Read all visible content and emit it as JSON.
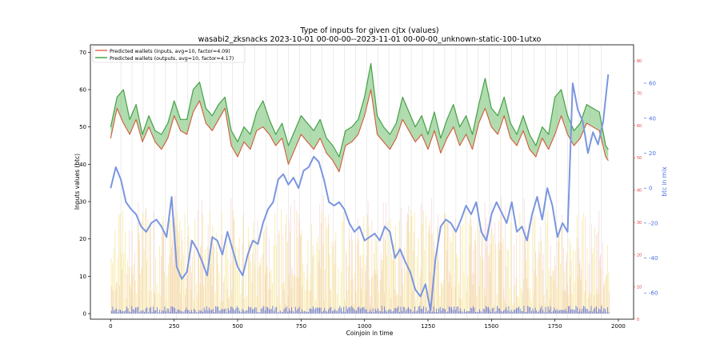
{
  "chart_data": {
    "type": "line",
    "title": "Type of inputs for given cjtx (values)",
    "subtitle": "wasabi2_zksnacks 2023-10-01 00-00-00--2023-11-01 00-00-00_unknown-static-100-1utxo",
    "xlabel": "Coinjoin in time",
    "ylabel_left": "Inputs values (btc)",
    "ylabel_right": "btc in mix",
    "xlim": [
      -80,
      2060
    ],
    "ylim_left": [
      -1.5,
      72
    ],
    "ylim_mid": [
      0,
      85
    ],
    "ylim_right": [
      -75,
      82
    ],
    "x_ticks": [
      0,
      250,
      500,
      750,
      1000,
      1250,
      1500,
      1750,
      2000
    ],
    "y_left_ticks": [
      0,
      10,
      20,
      30,
      40,
      50,
      60,
      70
    ],
    "y_mid_ticks": [
      0,
      10,
      20,
      30,
      40,
      50,
      60,
      70,
      80
    ],
    "y_right_ticks": [
      -60,
      -40,
      -20,
      0,
      20,
      40,
      60
    ],
    "legend_position": "top-left",
    "legend": [
      {
        "name": "Predicted wallets (inputs, avg=10, factor=4.09)",
        "color": "#e0624a"
      },
      {
        "name": "Predicted wallets (outputs, avg=10, factor=4.17)",
        "color": "#3a9e3a"
      }
    ],
    "colors": {
      "inputs_line": "#d45a3a",
      "outputs_line": "#46a046",
      "fill": "#6fbf6f",
      "btc_in_mix": "#7b96e0",
      "right_axis": "#4a6fe0",
      "mid_axis": "#e03a3a",
      "bars_yellow": "#f2dc6a",
      "bars_pink": "#f0b0b0",
      "bars_blue": "#3050e0"
    },
    "series": [
      {
        "name": "Predicted wallets (inputs, avg=10, factor=4.09)",
        "axis": "left",
        "x": [
          0,
          25,
          50,
          75,
          100,
          125,
          150,
          175,
          200,
          225,
          250,
          275,
          300,
          325,
          350,
          375,
          400,
          425,
          450,
          475,
          500,
          525,
          550,
          575,
          600,
          625,
          650,
          675,
          700,
          725,
          750,
          775,
          800,
          825,
          850,
          875,
          900,
          925,
          950,
          975,
          1000,
          1025,
          1050,
          1075,
          1100,
          1125,
          1150,
          1175,
          1200,
          1225,
          1250,
          1275,
          1300,
          1325,
          1350,
          1375,
          1400,
          1425,
          1450,
          1475,
          1500,
          1525,
          1550,
          1575,
          1600,
          1625,
          1650,
          1675,
          1700,
          1725,
          1750,
          1775,
          1800,
          1825,
          1850,
          1875,
          1900,
          1925,
          1950,
          1960
        ],
        "values": [
          47,
          55,
          51,
          48,
          52,
          46,
          50,
          46,
          44,
          47,
          53,
          49,
          48,
          54,
          57,
          51,
          49,
          52,
          55,
          45,
          42,
          46,
          44,
          49,
          50,
          48,
          45,
          47,
          40,
          44,
          48,
          46,
          44,
          47,
          43,
          41,
          38,
          45,
          46,
          48,
          53,
          60,
          48,
          46,
          44,
          47,
          52,
          49,
          46,
          48,
          44,
          49,
          43,
          47,
          50,
          45,
          48,
          44,
          51,
          55,
          50,
          48,
          53,
          47,
          45,
          49,
          44,
          42,
          47,
          44,
          48,
          53,
          48,
          45,
          47,
          51,
          50,
          49,
          42,
          41
        ]
      },
      {
        "name": "Predicted wallets (outputs, avg=10, factor=4.17)",
        "axis": "left",
        "x": [
          0,
          25,
          50,
          75,
          100,
          125,
          150,
          175,
          200,
          225,
          250,
          275,
          300,
          325,
          350,
          375,
          400,
          425,
          450,
          475,
          500,
          525,
          550,
          575,
          600,
          625,
          650,
          675,
          700,
          725,
          750,
          775,
          800,
          825,
          850,
          875,
          900,
          925,
          950,
          975,
          1000,
          1025,
          1050,
          1075,
          1100,
          1125,
          1150,
          1175,
          1200,
          1225,
          1250,
          1275,
          1300,
          1325,
          1350,
          1375,
          1400,
          1425,
          1450,
          1475,
          1500,
          1525,
          1550,
          1575,
          1600,
          1625,
          1650,
          1675,
          1700,
          1725,
          1750,
          1775,
          1800,
          1825,
          1850,
          1875,
          1900,
          1925,
          1950,
          1960
        ],
        "values": [
          50,
          58,
          60,
          52,
          56,
          48,
          53,
          49,
          48,
          51,
          57,
          52,
          52,
          60,
          62,
          55,
          53,
          56,
          58,
          49,
          46,
          50,
          48,
          54,
          57,
          52,
          48,
          51,
          45,
          49,
          53,
          51,
          49,
          52,
          47,
          45,
          42,
          49,
          50,
          52,
          58,
          67,
          53,
          50,
          48,
          51,
          58,
          54,
          50,
          53,
          48,
          54,
          47,
          52,
          56,
          50,
          53,
          48,
          56,
          63,
          55,
          53,
          58,
          51,
          48,
          53,
          48,
          45,
          50,
          48,
          58,
          60,
          53,
          49,
          51,
          56,
          55,
          54,
          45,
          44
        ]
      },
      {
        "name": "btc in mix",
        "axis": "right",
        "x": [
          0,
          20,
          40,
          60,
          80,
          100,
          120,
          140,
          160,
          180,
          200,
          220,
          240,
          260,
          280,
          300,
          320,
          340,
          360,
          380,
          400,
          420,
          440,
          460,
          480,
          500,
          520,
          540,
          560,
          580,
          600,
          620,
          640,
          660,
          680,
          700,
          720,
          740,
          760,
          780,
          800,
          820,
          840,
          860,
          880,
          900,
          920,
          940,
          960,
          980,
          1000,
          1020,
          1040,
          1060,
          1080,
          1100,
          1120,
          1140,
          1160,
          1180,
          1200,
          1220,
          1240,
          1260,
          1280,
          1300,
          1320,
          1340,
          1360,
          1380,
          1400,
          1420,
          1440,
          1460,
          1480,
          1500,
          1520,
          1540,
          1560,
          1580,
          1600,
          1620,
          1640,
          1660,
          1680,
          1700,
          1720,
          1740,
          1760,
          1780,
          1800,
          1820,
          1840,
          1860,
          1880,
          1900,
          1920,
          1940,
          1960
        ],
        "values": [
          0,
          12,
          5,
          -8,
          -12,
          -15,
          -22,
          -25,
          -20,
          -18,
          -22,
          -28,
          -5,
          -45,
          -52,
          -48,
          -30,
          -35,
          -42,
          -50,
          -28,
          -30,
          -38,
          -25,
          -35,
          -45,
          -50,
          -38,
          -30,
          -32,
          -20,
          -12,
          -8,
          5,
          8,
          2,
          6,
          0,
          10,
          12,
          18,
          15,
          5,
          -8,
          -10,
          -8,
          -12,
          -20,
          -25,
          -22,
          -30,
          -28,
          -26,
          -30,
          -22,
          -25,
          -40,
          -35,
          -42,
          -48,
          -58,
          -62,
          -55,
          -70,
          -40,
          -22,
          -18,
          -20,
          -25,
          -18,
          -10,
          -15,
          -8,
          -25,
          -30,
          -15,
          -8,
          -14,
          -20,
          -8,
          -25,
          -22,
          -30,
          -15,
          -5,
          -18,
          0,
          -10,
          -28,
          -20,
          -25,
          60,
          45,
          38,
          20,
          32,
          25,
          38,
          65
        ]
      }
    ]
  }
}
